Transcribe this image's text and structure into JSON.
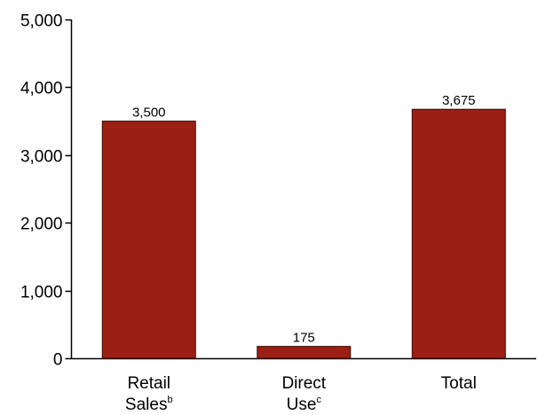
{
  "chart_data": {
    "type": "bar",
    "title": "",
    "xlabel": "",
    "ylabel": "",
    "categories": [
      {
        "lines": [
          {
            "text": "Retail",
            "sup": ""
          },
          {
            "text": "Sales",
            "sup": "b"
          }
        ]
      },
      {
        "lines": [
          {
            "text": "Direct",
            "sup": ""
          },
          {
            "text": "Use",
            "sup": "c"
          }
        ]
      },
      {
        "lines": [
          {
            "text": "Total",
            "sup": ""
          }
        ]
      }
    ],
    "values": [
      3500,
      175,
      3675
    ],
    "data_labels": [
      "3,500",
      "175",
      "3,675"
    ],
    "ylim": [
      0,
      5000
    ],
    "y_ticks": [
      0,
      1000,
      2000,
      3000,
      4000,
      5000
    ],
    "y_tick_labels": [
      "0",
      "1,000",
      "2,000",
      "3,000",
      "4,000",
      "5,000"
    ],
    "grid": false,
    "colors": {
      "bar_fill": "#9c1f14",
      "bar_stroke": "#3a0a06",
      "axis": "#000000"
    }
  }
}
